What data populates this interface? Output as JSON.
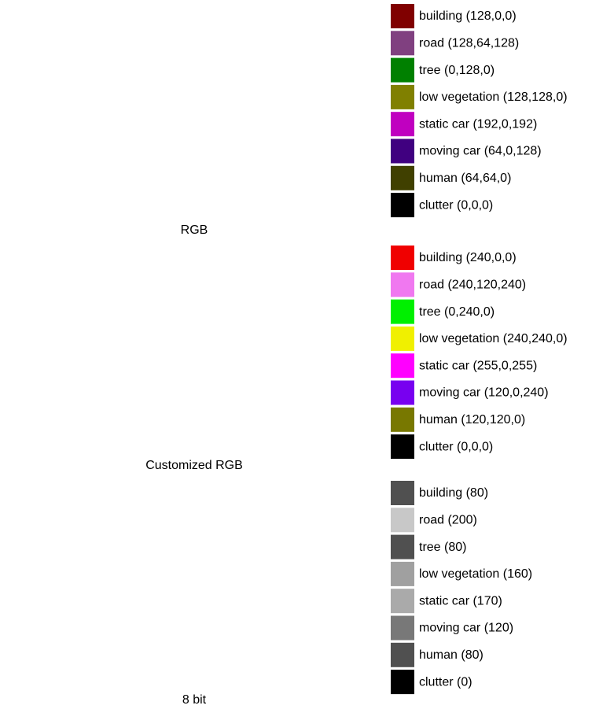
{
  "panels": [
    {
      "caption": "RGB",
      "legend": [
        {
          "label": "building (128,0,0)",
          "color": "#800000"
        },
        {
          "label": "road (128,64,128)",
          "color": "#804080"
        },
        {
          "label": "tree (0,128,0)",
          "color": "#008000"
        },
        {
          "label": "low vegetation (128,128,0)",
          "color": "#808000"
        },
        {
          "label": "static car (192,0,192)",
          "color": "#c000c0"
        },
        {
          "label": "moving car (64,0,128)",
          "color": "#400080"
        },
        {
          "label": "human (64,64,0)",
          "color": "#404000"
        },
        {
          "label": "clutter (0,0,0)",
          "color": "#000000"
        }
      ]
    },
    {
      "caption": "Customized RGB",
      "legend": [
        {
          "label": "building (240,0,0)",
          "color": "#f00000"
        },
        {
          "label": "road (240,120,240)",
          "color": "#f078f0"
        },
        {
          "label": "tree (0,240,0)",
          "color": "#00f000"
        },
        {
          "label": "low vegetation (240,240,0)",
          "color": "#f0f000"
        },
        {
          "label": "static car (255,0,255)",
          "color": "#ff00ff"
        },
        {
          "label": "moving car (120,0,240)",
          "color": "#7800f0"
        },
        {
          "label": "human (120,120,0)",
          "color": "#787800"
        },
        {
          "label": "clutter (0,0,0)",
          "color": "#000000"
        }
      ]
    },
    {
      "caption": "8 bit",
      "legend": [
        {
          "label": "building (80)",
          "color": "#505050"
        },
        {
          "label": "road (200)",
          "color": "#c8c8c8"
        },
        {
          "label": "tree (80)",
          "color": "#505050"
        },
        {
          "label": "low vegetation (160)",
          "color": "#a0a0a0"
        },
        {
          "label": "static car (170)",
          "color": "#aaaaaa"
        },
        {
          "label": "moving car (120)",
          "color": "#787878"
        },
        {
          "label": "human (80)",
          "color": "#505050"
        },
        {
          "label": "clutter (0)",
          "color": "#000000"
        }
      ]
    }
  ]
}
